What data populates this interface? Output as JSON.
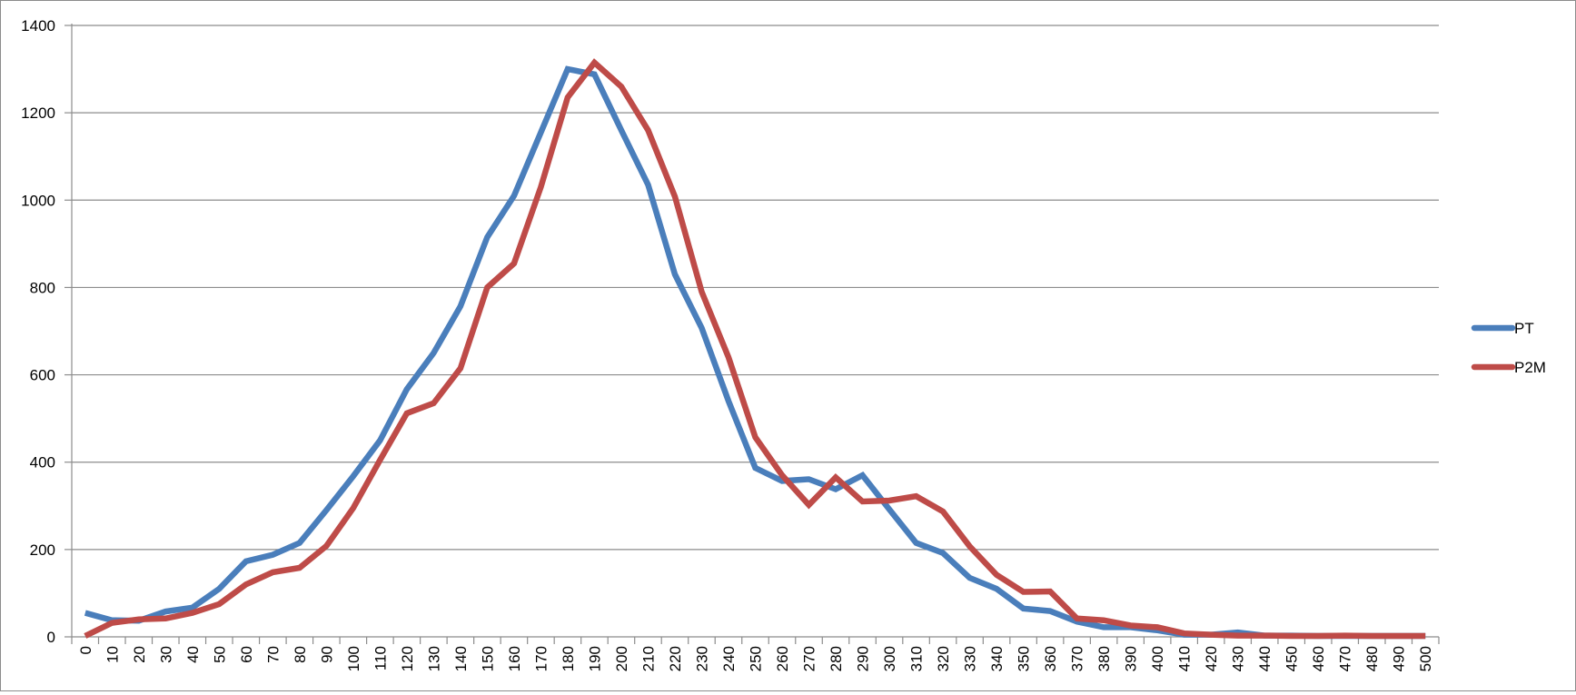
{
  "chart_data": {
    "type": "line",
    "title": "",
    "xlabel": "",
    "ylabel": "",
    "x": [
      0,
      10,
      20,
      30,
      40,
      50,
      60,
      70,
      80,
      90,
      100,
      110,
      120,
      130,
      140,
      150,
      160,
      170,
      180,
      190,
      200,
      210,
      220,
      230,
      240,
      250,
      260,
      270,
      280,
      290,
      300,
      310,
      320,
      330,
      340,
      350,
      360,
      370,
      380,
      390,
      400,
      410,
      420,
      430,
      440,
      450,
      460,
      470,
      480,
      490,
      500
    ],
    "ylim": [
      0,
      1400
    ],
    "yticks": [
      0,
      200,
      400,
      600,
      800,
      1000,
      1200,
      1400
    ],
    "grid": true,
    "legend_position": "right",
    "series": [
      {
        "name": "PT",
        "color": "#4a7ebb",
        "values": [
          55,
          38,
          37,
          58,
          67,
          110,
          173,
          188,
          215,
          290,
          368,
          450,
          567,
          650,
          757,
          915,
          1010,
          1155,
          1300,
          1288,
          1160,
          1035,
          830,
          707,
          540,
          387,
          357,
          361,
          338,
          370,
          292,
          215,
          192,
          135,
          110,
          65,
          59,
          35,
          22,
          22,
          15,
          5,
          5,
          10,
          3,
          3,
          2,
          2,
          2,
          2,
          2
        ]
      },
      {
        "name": "P2M",
        "color": "#be4b48",
        "values": [
          2,
          32,
          40,
          42,
          55,
          75,
          120,
          148,
          158,
          208,
          295,
          405,
          512,
          535,
          615,
          800,
          855,
          1030,
          1235,
          1315,
          1260,
          1160,
          1008,
          790,
          640,
          457,
          370,
          302,
          365,
          310,
          312,
          322,
          287,
          207,
          142,
          103,
          104,
          42,
          38,
          26,
          22,
          8,
          5,
          3,
          3,
          2,
          2,
          3,
          2,
          2,
          2
        ]
      }
    ]
  }
}
